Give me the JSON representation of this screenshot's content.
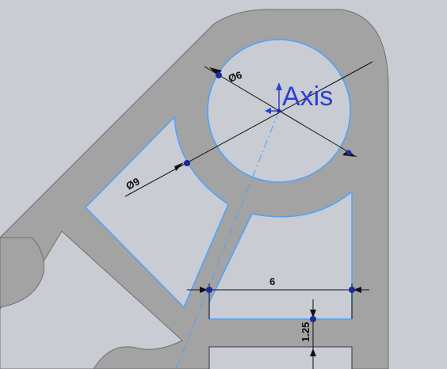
{
  "sketch": {
    "axis_label": "Axis",
    "dimensions": {
      "dia_hole": "Ø6",
      "dia_arc": "Ø9",
      "width": "6",
      "height": "1.25"
    }
  },
  "colors": {
    "background": "#c9ccd3",
    "part_fill": "#a3a3a3",
    "sketch_line": "#4aa3ff",
    "dimension_line": "#111111",
    "point": "#1b2a9e",
    "axis_text": "#2a3fd6"
  }
}
